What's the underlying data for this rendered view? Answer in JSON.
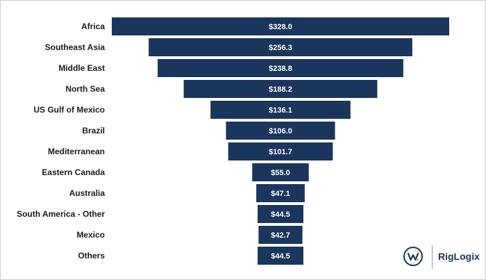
{
  "chart_data": {
    "type": "bar",
    "orientation": "horizontal-centered",
    "categories": [
      "Africa",
      "Southeast Asia",
      "Middle East",
      "North Sea",
      "US Gulf of Mexico",
      "Brazil",
      "Mediterranean",
      "Eastern Canada",
      "Australia",
      "South America - Other",
      "Mexico",
      "Others"
    ],
    "values": [
      328.0,
      256.3,
      238.8,
      188.2,
      136.1,
      106.0,
      101.7,
      55.0,
      47.1,
      44.5,
      42.7,
      44.5
    ],
    "value_labels": [
      "$328.0",
      "$256.3",
      "$238.8",
      "$188.2",
      "$136.1",
      "$106.0",
      "$101.7",
      "$55.0",
      "$47.1",
      "$44.5",
      "$42.7",
      "$44.5"
    ],
    "title": "",
    "xlabel": "",
    "ylabel": "",
    "grid": false,
    "legend": "none",
    "bar_color": "#1b365d"
  },
  "logo": {
    "text": "RigLogix",
    "mark": "westwood-w-icon",
    "color": "#1b365d"
  }
}
